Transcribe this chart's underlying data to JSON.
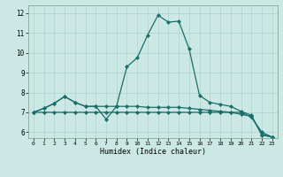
{
  "xlabel": "Humidex (Indice chaleur)",
  "background_color": "#cce8e4",
  "grid_color": "#aad4cc",
  "line_color": "#1a6e6a",
  "xlim": [
    -0.5,
    23.5
  ],
  "ylim": [
    5.7,
    12.4
  ],
  "xticks": [
    0,
    1,
    2,
    3,
    4,
    5,
    6,
    7,
    8,
    9,
    10,
    11,
    12,
    13,
    14,
    15,
    16,
    17,
    18,
    19,
    20,
    21,
    22,
    23
  ],
  "yticks": [
    6,
    7,
    8,
    9,
    10,
    11,
    12
  ],
  "line1_x": [
    0,
    1,
    2,
    3,
    4,
    5,
    6,
    7,
    8,
    9,
    10,
    11,
    12,
    13,
    14,
    15,
    16,
    17,
    18,
    19,
    20,
    21,
    22,
    23
  ],
  "line1_y": [
    7.0,
    7.2,
    7.45,
    7.8,
    7.5,
    7.3,
    7.3,
    7.3,
    7.3,
    9.3,
    9.75,
    10.9,
    11.9,
    11.55,
    11.6,
    10.2,
    7.85,
    7.5,
    7.4,
    7.3,
    7.05,
    6.85,
    5.85,
    5.75
  ],
  "line2_x": [
    0,
    1,
    2,
    3,
    4,
    5,
    6,
    7,
    8,
    9,
    10,
    11,
    12,
    13,
    14,
    15,
    16,
    17,
    18,
    19,
    20,
    21,
    22,
    23
  ],
  "line2_y": [
    7.0,
    7.2,
    7.45,
    7.8,
    7.5,
    7.3,
    7.3,
    6.65,
    7.3,
    7.3,
    7.3,
    7.25,
    7.25,
    7.25,
    7.25,
    7.2,
    7.15,
    7.1,
    7.05,
    7.0,
    6.9,
    6.8,
    5.9,
    5.75
  ],
  "line3_x": [
    0,
    1,
    2,
    3,
    4,
    5,
    6,
    7,
    8,
    9,
    10,
    11,
    12,
    13,
    14,
    15,
    16,
    17,
    18,
    19,
    20,
    21,
    22,
    23
  ],
  "line3_y": [
    7.0,
    7.0,
    7.0,
    7.0,
    7.0,
    7.0,
    7.0,
    7.0,
    7.0,
    7.0,
    7.0,
    7.0,
    7.0,
    7.0,
    7.0,
    7.0,
    7.0,
    7.0,
    7.0,
    7.0,
    7.0,
    6.75,
    6.0,
    5.75
  ]
}
